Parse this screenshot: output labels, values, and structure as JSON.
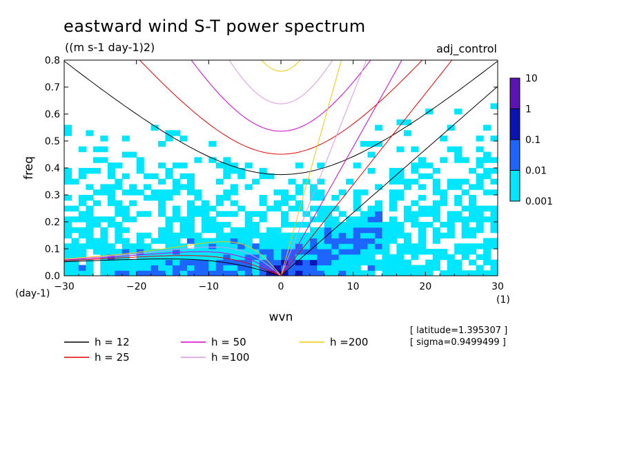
{
  "chart_data": {
    "type": "heatmap",
    "title": "eastward wind S-T power spectrum",
    "subtitle": "((m s-1 day-1)2)",
    "run_label": "adj_control",
    "xlabel": "wvn",
    "ylabel": "freq",
    "x_unit_label": "(1)",
    "y_unit_label": "(day-1)",
    "xlim": [
      -30,
      30
    ],
    "ylim": [
      0,
      0.8
    ],
    "x_ticks": [
      -30,
      -20,
      -10,
      0,
      10,
      20,
      30
    ],
    "y_ticks": [
      0.0,
      0.1,
      0.2,
      0.3,
      0.4,
      0.5,
      0.6,
      0.7,
      0.8
    ],
    "x_tick_labels": [
      "−30",
      "−20",
      "−10",
      "0",
      "10",
      "20",
      "30"
    ],
    "y_tick_labels": [
      "0.0",
      "0.1",
      "0.2",
      "0.3",
      "0.4",
      "0.5",
      "0.6",
      "0.7",
      "0.8"
    ],
    "colorbar": {
      "labels": [
        "10",
        "1",
        "0.1",
        "0.01",
        "0.001"
      ],
      "colors": [
        "#5a14b4",
        "#0a14b4",
        "#1e64ff",
        "#00e6ff"
      ],
      "levels": [
        0.001,
        0.01,
        0.1,
        1,
        10
      ]
    },
    "dispersion_curves": [
      {
        "h": 12,
        "label": "h = 12",
        "color": "#000000"
      },
      {
        "h": 25,
        "label": "h = 25",
        "color": "#e60000"
      },
      {
        "h": 50,
        "label": "h = 50",
        "color": "#d200d2"
      },
      {
        "h": 100,
        "label": "h =100",
        "color": "#dc96e6"
      },
      {
        "h": 200,
        "label": "h =200",
        "color": "#f0c800"
      }
    ],
    "info": [
      "[ latitude=1.395307 ]",
      "[ sigma=0.9499499 ]"
    ]
  }
}
